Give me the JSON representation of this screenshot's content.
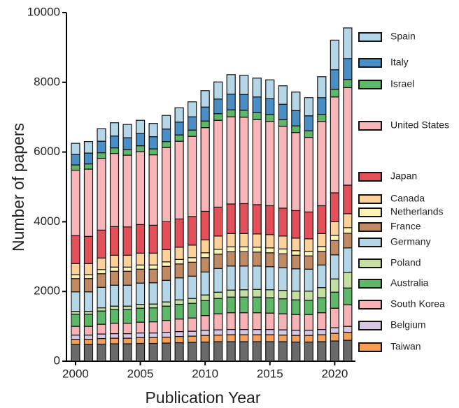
{
  "chart_data": {
    "type": "stacked-bar",
    "y_label": "Number of papers",
    "x_label": "Publication Year",
    "x": [
      2000,
      2001,
      2002,
      2003,
      2004,
      2005,
      2006,
      2007,
      2008,
      2009,
      2010,
      2011,
      2012,
      2013,
      2014,
      2015,
      2016,
      2017,
      2018,
      2019,
      2020,
      2021
    ],
    "xlim": [
      1999.3,
      2021.6
    ],
    "xticks": [
      2000,
      2005,
      2010,
      2015,
      2020
    ],
    "ylim": [
      0,
      10000
    ],
    "yticks": [
      0,
      2000,
      4000,
      6000,
      8000,
      10000
    ],
    "legend": "right",
    "series": [
      {
        "color": "#6a6a6a",
        "values": [
          480,
          480,
          490,
          500,
          500,
          510,
          510,
          520,
          530,
          540,
          550,
          560,
          560,
          560,
          560,
          560,
          560,
          550,
          550,
          560,
          580,
          600
        ]
      },
      {
        "name": "Taiwan",
        "color": "#f5a05a",
        "values": [
          150,
          150,
          160,
          160,
          160,
          170,
          170,
          170,
          180,
          180,
          190,
          190,
          200,
          200,
          200,
          200,
          190,
          190,
          190,
          200,
          220,
          230
        ]
      },
      {
        "name": "Belgium",
        "color": "#d6c8e4",
        "values": [
          120,
          120,
          130,
          130,
          130,
          130,
          130,
          140,
          140,
          140,
          150,
          150,
          150,
          150,
          150,
          150,
          150,
          150,
          150,
          150,
          160,
          170
        ]
      },
      {
        "name": "South Korea",
        "color": "#f7b2b6",
        "values": [
          250,
          250,
          280,
          300,
          300,
          310,
          320,
          340,
          360,
          380,
          420,
          460,
          480,
          480,
          480,
          470,
          460,
          450,
          450,
          480,
          560,
          620
        ]
      },
      {
        "name": "Australia",
        "color": "#5fb86a",
        "values": [
          350,
          350,
          380,
          390,
          390,
          400,
          400,
          410,
          420,
          420,
          430,
          440,
          450,
          450,
          450,
          440,
          430,
          420,
          410,
          430,
          460,
          480
        ]
      },
      {
        "name": "Poland",
        "color": "#c3e0a2",
        "values": [
          80,
          80,
          90,
          100,
          100,
          110,
          110,
          120,
          130,
          140,
          160,
          180,
          200,
          210,
          220,
          230,
          240,
          250,
          260,
          290,
          380,
          450
        ]
      },
      {
        "name": "Germany",
        "color": "#b4d6e6",
        "values": [
          560,
          560,
          590,
          600,
          600,
          610,
          610,
          620,
          630,
          640,
          660,
          680,
          690,
          680,
          670,
          660,
          650,
          640,
          630,
          650,
          690,
          700
        ]
      },
      {
        "name": "France",
        "color": "#c08a64",
        "values": [
          380,
          380,
          390,
          400,
          400,
          400,
          390,
          400,
          400,
          400,
          410,
          410,
          410,
          410,
          400,
          400,
          400,
          390,
          380,
          390,
          410,
          420
        ]
      },
      {
        "name": "Netherlands",
        "color": "#fbf3b4",
        "values": [
          110,
          110,
          120,
          120,
          120,
          120,
          120,
          130,
          130,
          130,
          140,
          140,
          140,
          140,
          140,
          140,
          140,
          130,
          130,
          140,
          150,
          160
        ]
      },
      {
        "name": "Canada",
        "color": "#fcd29a",
        "values": [
          320,
          320,
          330,
          340,
          340,
          340,
          340,
          350,
          350,
          360,
          370,
          380,
          380,
          380,
          380,
          380,
          370,
          360,
          360,
          370,
          390,
          400
        ]
      },
      {
        "name": "Japan",
        "color": "#e3505a",
        "values": [
          800,
          780,
          800,
          820,
          810,
          820,
          800,
          800,
          810,
          820,
          820,
          830,
          850,
          860,
          840,
          830,
          800,
          790,
          770,
          800,
          830,
          820
        ]
      },
      {
        "name": "United States",
        "color": "#f8b6b8",
        "values": [
          1880,
          1930,
          2060,
          2100,
          2060,
          2090,
          2020,
          2130,
          2230,
          2300,
          2400,
          2490,
          2500,
          2480,
          2440,
          2420,
          2350,
          2240,
          2140,
          2420,
          2750,
          2800
        ]
      },
      {
        "name": "Israel",
        "color": "#5fb86a",
        "values": [
          150,
          150,
          160,
          160,
          160,
          170,
          170,
          170,
          180,
          180,
          190,
          190,
          200,
          200,
          200,
          200,
          190,
          190,
          190,
          200,
          220,
          230
        ]
      },
      {
        "name": "Italy",
        "color": "#4a8ec6",
        "values": [
          300,
          310,
          330,
          340,
          340,
          350,
          350,
          360,
          370,
          380,
          400,
          420,
          450,
          450,
          450,
          450,
          440,
          440,
          430,
          480,
          560,
          600
        ]
      },
      {
        "name": "Spain",
        "color": "#b4d6e6",
        "values": [
          320,
          330,
          360,
          380,
          380,
          380,
          380,
          390,
          410,
          430,
          470,
          490,
          560,
          550,
          540,
          540,
          530,
          530,
          520,
          600,
          850,
          880
        ]
      }
    ]
  }
}
